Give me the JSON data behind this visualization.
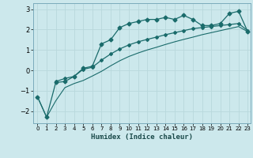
{
  "xlabel": "Humidex (Indice chaleur)",
  "bg_color": "#cce8ec",
  "grid_color": "#b8d8dc",
  "line_color": "#1a6b6b",
  "xlim": [
    -0.5,
    23.3
  ],
  "ylim": [
    -2.6,
    3.3
  ],
  "xticks": [
    0,
    1,
    2,
    3,
    4,
    5,
    6,
    7,
    8,
    9,
    10,
    11,
    12,
    13,
    14,
    15,
    16,
    17,
    18,
    19,
    20,
    21,
    22,
    23
  ],
  "yticks": [
    -2,
    -1,
    0,
    1,
    2,
    3
  ],
  "curve1_x": [
    0,
    1,
    2,
    3,
    4,
    5,
    6,
    7,
    8,
    9,
    10,
    11,
    12,
    13,
    14,
    15,
    16,
    17,
    18,
    19,
    20,
    21,
    22,
    23
  ],
  "curve1_y": [
    -1.3,
    -2.3,
    -0.6,
    -0.55,
    -0.3,
    0.1,
    0.2,
    1.3,
    1.5,
    2.1,
    2.3,
    2.4,
    2.5,
    2.5,
    2.6,
    2.5,
    2.7,
    2.5,
    2.2,
    2.2,
    2.3,
    2.8,
    2.9,
    1.9
  ],
  "curve2_x": [
    2,
    3,
    4,
    5,
    6,
    7,
    8,
    9,
    10,
    11,
    12,
    13,
    14,
    15,
    16,
    17,
    18,
    19,
    20,
    21,
    22,
    23
  ],
  "curve2_y": [
    -0.55,
    -0.4,
    -0.3,
    0.05,
    0.15,
    0.5,
    0.8,
    1.05,
    1.25,
    1.4,
    1.52,
    1.63,
    1.75,
    1.85,
    1.95,
    2.05,
    2.1,
    2.15,
    2.2,
    2.25,
    2.3,
    1.95
  ],
  "curve3_x": [
    0,
    1,
    2,
    3,
    4,
    5,
    6,
    7,
    8,
    9,
    10,
    11,
    12,
    13,
    14,
    15,
    16,
    17,
    18,
    19,
    20,
    21,
    22,
    23
  ],
  "curve3_y": [
    -1.3,
    -2.3,
    -1.5,
    -0.85,
    -0.65,
    -0.5,
    -0.28,
    -0.05,
    0.22,
    0.47,
    0.68,
    0.85,
    1.0,
    1.13,
    1.27,
    1.4,
    1.52,
    1.63,
    1.75,
    1.85,
    1.95,
    2.05,
    2.15,
    1.9
  ]
}
